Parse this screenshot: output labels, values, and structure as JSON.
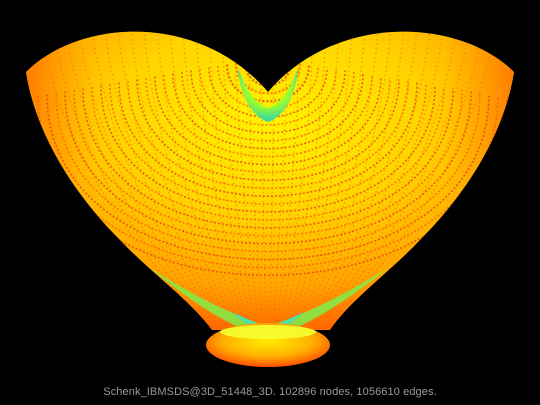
{
  "graph": {
    "caption": "Schenk_IBMSDS@3D_51448_3D. 102896 nodes, 1056610 edges.",
    "colors": {
      "background": "#000000",
      "yellow": "#fff200",
      "orange": "#ffa600",
      "deep_orange": "#ff5a00",
      "edge_red": "#e23a10",
      "green": "#9cff2a",
      "cyan": "#40e0c0",
      "caption": "#9a9a9a"
    }
  }
}
